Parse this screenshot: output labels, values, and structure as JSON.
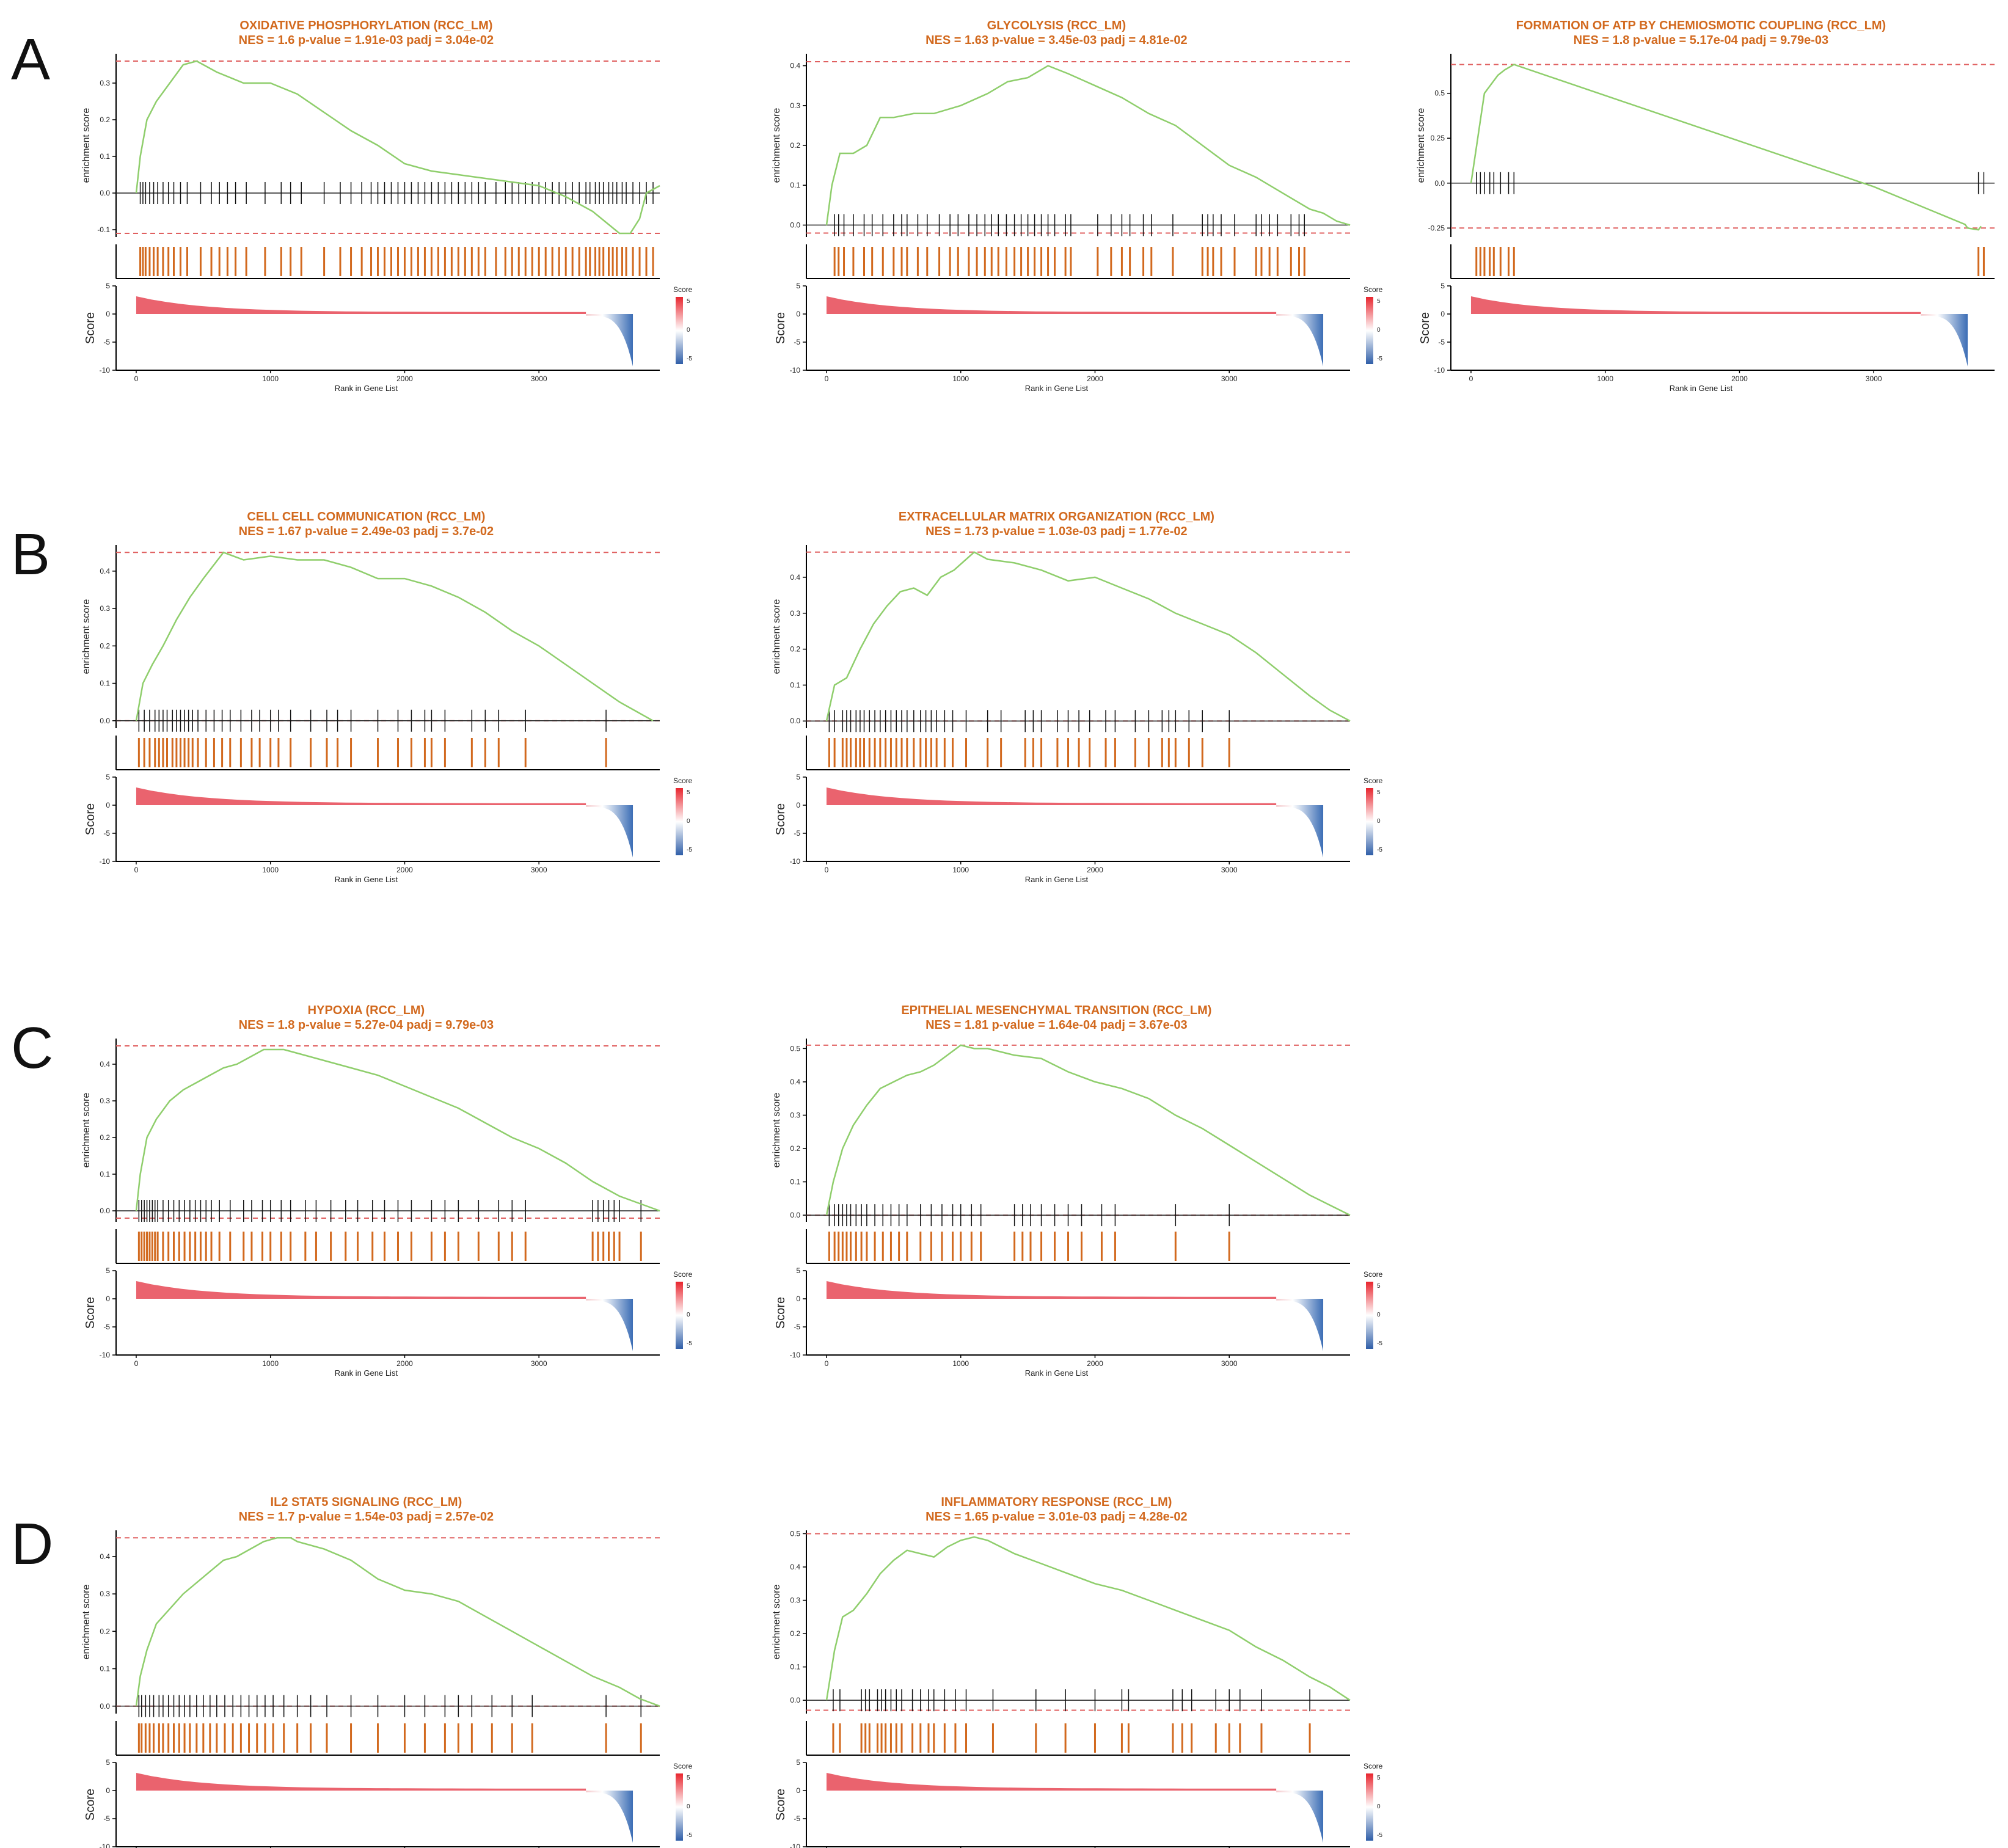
{
  "panel_letters": [
    "A",
    "B",
    "C",
    "D"
  ],
  "common": {
    "es_ylabel": "enrichment score",
    "score_ylabel": "Score",
    "xlabel": "Rank in Gene List",
    "legend_title": "Score",
    "legend_ticks": [
      "5",
      "0",
      "-5"
    ],
    "x_ticks": [
      0,
      1000,
      2000,
      3000
    ],
    "score_ticks": [
      5,
      0,
      -5,
      -10
    ],
    "colors": {
      "title": "#d2691e",
      "es_line": "#8fce6c",
      "hit_tick": "#111111",
      "rug": "#d2691e",
      "dashed": "#e06060",
      "pos": "#e8525e",
      "neg": "#3b6db5"
    }
  },
  "chart_data": [
    {
      "type": "line",
      "panel": "A",
      "title": "OXIDATIVE PHOSPHORYLATION (RCC_LM)",
      "subtitle": "NES = 1.6  p-value = 1.91e-03  padj = 3.04e-02",
      "x": [
        0,
        30,
        80,
        150,
        250,
        350,
        450,
        600,
        800,
        1000,
        1200,
        1400,
        1600,
        1800,
        2000,
        2200,
        2400,
        2600,
        2800,
        3000,
        3200,
        3400,
        3500,
        3600,
        3680,
        3750,
        3800,
        3900
      ],
      "y": [
        0.0,
        0.1,
        0.2,
        0.25,
        0.3,
        0.35,
        0.36,
        0.33,
        0.3,
        0.3,
        0.27,
        0.22,
        0.17,
        0.13,
        0.08,
        0.06,
        0.05,
        0.04,
        0.03,
        0.02,
        -0.01,
        -0.05,
        -0.08,
        -0.11,
        -0.11,
        -0.07,
        0.0,
        0.02
      ],
      "es_ticks": [
        0.3,
        0.2,
        0.1,
        0.0,
        -0.1
      ],
      "ylim": [
        -0.12,
        0.38
      ],
      "max_es": 0.36,
      "min_es": -0.11,
      "hits": [
        30,
        50,
        70,
        100,
        130,
        160,
        200,
        240,
        280,
        330,
        380,
        480,
        560,
        620,
        680,
        740,
        820,
        960,
        1080,
        1150,
        1230,
        1400,
        1520,
        1600,
        1680,
        1750,
        1800,
        1850,
        1900,
        1950,
        2000,
        2050,
        2100,
        2150,
        2200,
        2250,
        2300,
        2350,
        2400,
        2450,
        2500,
        2550,
        2600,
        2680,
        2750,
        2800,
        2850,
        2900,
        2950,
        3000,
        3050,
        3100,
        3150,
        3200,
        3250,
        3300,
        3350,
        3380,
        3420,
        3450,
        3480,
        3520,
        3550,
        3580,
        3620,
        3650,
        3700,
        3750,
        3800,
        3850
      ]
    },
    {
      "type": "line",
      "panel": "A",
      "title": "GLYCOLYSIS (RCC_LM)",
      "subtitle": "NES = 1.63  p-value = 3.45e-03  padj = 4.81e-02",
      "x": [
        0,
        40,
        100,
        200,
        300,
        400,
        500,
        650,
        800,
        1000,
        1200,
        1350,
        1500,
        1650,
        1800,
        2000,
        2200,
        2400,
        2600,
        2800,
        3000,
        3200,
        3400,
        3600,
        3700,
        3800,
        3900
      ],
      "y": [
        0.0,
        0.1,
        0.18,
        0.18,
        0.2,
        0.27,
        0.27,
        0.28,
        0.28,
        0.3,
        0.33,
        0.36,
        0.37,
        0.4,
        0.38,
        0.35,
        0.32,
        0.28,
        0.25,
        0.2,
        0.15,
        0.12,
        0.08,
        0.04,
        0.03,
        0.01,
        0.0
      ],
      "es_ticks": [
        0.4,
        0.3,
        0.2,
        0.1,
        0.0
      ],
      "ylim": [
        -0.03,
        0.43
      ],
      "max_es": 0.41,
      "min_es": -0.02,
      "hits": [
        60,
        90,
        130,
        200,
        280,
        340,
        420,
        500,
        560,
        600,
        680,
        750,
        840,
        920,
        980,
        1060,
        1120,
        1180,
        1230,
        1280,
        1340,
        1400,
        1450,
        1500,
        1550,
        1600,
        1650,
        1700,
        1780,
        1820,
        2020,
        2120,
        2200,
        2260,
        2360,
        2420,
        2580,
        2800,
        2840,
        2880,
        2940,
        3040,
        3200,
        3240,
        3300,
        3360,
        3460,
        3520,
        3560
      ]
    },
    {
      "type": "line",
      "panel": "A",
      "title": "FORMATION OF ATP BY CHEMIOSMOTIC COUPLING (RCC_LM)",
      "subtitle": "NES = 1.8  p-value = 5.17e-04  padj = 9.79e-03",
      "x": [
        0,
        40,
        70,
        100,
        150,
        200,
        250,
        320,
        3000,
        3680,
        3700,
        3780,
        3800
      ],
      "y": [
        0.0,
        0.2,
        0.35,
        0.5,
        0.55,
        0.6,
        0.63,
        0.66,
        -0.02,
        -0.23,
        -0.25,
        -0.26,
        -0.24
      ],
      "es_ticks": [
        0.5,
        0.25,
        0.0,
        -0.25
      ],
      "ylim": [
        -0.3,
        0.72
      ],
      "max_es": 0.66,
      "min_es": -0.25,
      "hits": [
        40,
        70,
        100,
        140,
        170,
        220,
        280,
        320,
        3780,
        3820
      ]
    },
    {
      "type": "line",
      "panel": "B",
      "title": "CELL CELL COMMUNICATION (RCC_LM)",
      "subtitle": "NES = 1.67  p-value = 2.49e-03  padj = 3.7e-02",
      "x": [
        0,
        50,
        120,
        200,
        300,
        400,
        500,
        650,
        800,
        1000,
        1200,
        1400,
        1600,
        1800,
        2000,
        2200,
        2400,
        2600,
        2800,
        3000,
        3200,
        3400,
        3600,
        3750,
        3850
      ],
      "y": [
        0.0,
        0.1,
        0.15,
        0.2,
        0.27,
        0.33,
        0.38,
        0.45,
        0.43,
        0.44,
        0.43,
        0.43,
        0.41,
        0.38,
        0.38,
        0.36,
        0.33,
        0.29,
        0.24,
        0.2,
        0.15,
        0.1,
        0.05,
        0.02,
        0.0
      ],
      "es_ticks": [
        0.4,
        0.3,
        0.2,
        0.1,
        0.0
      ],
      "ylim": [
        -0.02,
        0.47
      ],
      "max_es": 0.45,
      "min_es": 0.0,
      "hits": [
        20,
        60,
        100,
        140,
        170,
        200,
        230,
        270,
        300,
        330,
        360,
        390,
        420,
        460,
        520,
        580,
        640,
        700,
        780,
        860,
        920,
        1000,
        1060,
        1150,
        1300,
        1420,
        1500,
        1600,
        1800,
        1950,
        2050,
        2150,
        2200,
        2300,
        2500,
        2600,
        2700,
        2900,
        3500
      ]
    },
    {
      "type": "line",
      "panel": "B",
      "title": "EXTRACELLULAR MATRIX ORGANIZATION (RCC_LM)",
      "subtitle": "NES = 1.73  p-value = 1.03e-03  padj = 1.77e-02",
      "x": [
        0,
        60,
        150,
        250,
        350,
        450,
        550,
        650,
        750,
        850,
        950,
        1100,
        1200,
        1400,
        1600,
        1800,
        2000,
        2200,
        2400,
        2600,
        2800,
        3000,
        3200,
        3400,
        3600,
        3750,
        3900
      ],
      "y": [
        0.0,
        0.1,
        0.12,
        0.2,
        0.27,
        0.32,
        0.36,
        0.37,
        0.35,
        0.4,
        0.42,
        0.47,
        0.45,
        0.44,
        0.42,
        0.39,
        0.4,
        0.37,
        0.34,
        0.3,
        0.27,
        0.24,
        0.19,
        0.13,
        0.07,
        0.03,
        0.0
      ],
      "es_ticks": [
        0.4,
        0.3,
        0.2,
        0.1,
        0.0
      ],
      "ylim": [
        -0.02,
        0.49
      ],
      "max_es": 0.47,
      "min_es": 0.0,
      "hits": [
        20,
        60,
        120,
        150,
        180,
        220,
        250,
        280,
        320,
        360,
        400,
        440,
        480,
        520,
        560,
        600,
        650,
        700,
        740,
        780,
        820,
        880,
        940,
        1040,
        1200,
        1300,
        1480,
        1540,
        1600,
        1720,
        1800,
        1880,
        1960,
        2080,
        2150,
        2300,
        2400,
        2500,
        2550,
        2600,
        2700,
        2800,
        3000
      ]
    },
    {
      "type": "line",
      "panel": "C",
      "title": "HYPOXIA (RCC_LM)",
      "subtitle": "NES = 1.8  p-value = 5.27e-04  padj = 9.79e-03",
      "x": [
        0,
        30,
        80,
        150,
        250,
        350,
        450,
        550,
        650,
        750,
        850,
        950,
        1100,
        1200,
        1400,
        1600,
        1800,
        2000,
        2200,
        2400,
        2600,
        2800,
        3000,
        3200,
        3400,
        3600,
        3750,
        3900
      ],
      "y": [
        0.0,
        0.1,
        0.2,
        0.25,
        0.3,
        0.33,
        0.35,
        0.37,
        0.39,
        0.4,
        0.42,
        0.44,
        0.44,
        0.43,
        0.41,
        0.39,
        0.37,
        0.34,
        0.31,
        0.28,
        0.24,
        0.2,
        0.17,
        0.13,
        0.08,
        0.04,
        0.02,
        0.0
      ],
      "es_ticks": [
        0.4,
        0.3,
        0.2,
        0.1,
        0.0
      ],
      "ylim": [
        -0.03,
        0.47
      ],
      "max_es": 0.45,
      "min_es": -0.02,
      "hits": [
        20,
        40,
        60,
        80,
        100,
        120,
        140,
        160,
        200,
        240,
        280,
        320,
        360,
        400,
        440,
        480,
        520,
        560,
        620,
        700,
        800,
        860,
        940,
        1000,
        1080,
        1150,
        1260,
        1340,
        1450,
        1560,
        1650,
        1760,
        1850,
        1950,
        2050,
        2200,
        2300,
        2400,
        2550,
        2700,
        2800,
        2900,
        3400,
        3440,
        3480,
        3520,
        3560,
        3600,
        3760
      ]
    },
    {
      "type": "line",
      "panel": "C",
      "title": "EPITHELIAL MESENCHYMAL TRANSITION (RCC_LM)",
      "subtitle": "NES = 1.81  p-value = 1.64e-04  padj = 3.67e-03",
      "x": [
        0,
        50,
        120,
        200,
        300,
        400,
        500,
        600,
        700,
        800,
        900,
        1000,
        1100,
        1200,
        1400,
        1600,
        1800,
        2000,
        2200,
        2400,
        2600,
        2800,
        3000,
        3200,
        3400,
        3600,
        3750,
        3900
      ],
      "y": [
        0.0,
        0.1,
        0.2,
        0.27,
        0.33,
        0.38,
        0.4,
        0.42,
        0.43,
        0.45,
        0.48,
        0.51,
        0.5,
        0.5,
        0.48,
        0.47,
        0.43,
        0.4,
        0.38,
        0.35,
        0.3,
        0.26,
        0.21,
        0.16,
        0.11,
        0.06,
        0.03,
        0.0
      ],
      "es_ticks": [
        0.5,
        0.4,
        0.3,
        0.2,
        0.1,
        0.0
      ],
      "ylim": [
        -0.02,
        0.53
      ],
      "max_es": 0.51,
      "min_es": 0.0,
      "hits": [
        20,
        60,
        90,
        120,
        150,
        180,
        220,
        260,
        300,
        360,
        420,
        480,
        540,
        600,
        700,
        780,
        860,
        940,
        1000,
        1080,
        1150,
        1400,
        1460,
        1520,
        1600,
        1700,
        1800,
        1900,
        2050,
        2150,
        2600,
        3000
      ]
    },
    {
      "type": "line",
      "panel": "D",
      "title": "IL2 STAT5 SIGNALING (RCC_LM)",
      "subtitle": "NES = 1.7  p-value = 1.54e-03  padj = 2.57e-02",
      "x": [
        0,
        30,
        80,
        150,
        250,
        350,
        450,
        550,
        650,
        750,
        850,
        950,
        1050,
        1150,
        1200,
        1400,
        1600,
        1800,
        2000,
        2200,
        2400,
        2600,
        2800,
        3000,
        3200,
        3400,
        3600,
        3750,
        3900
      ],
      "y": [
        0.0,
        0.08,
        0.15,
        0.22,
        0.26,
        0.3,
        0.33,
        0.36,
        0.39,
        0.4,
        0.42,
        0.44,
        0.45,
        0.45,
        0.44,
        0.42,
        0.39,
        0.34,
        0.31,
        0.3,
        0.28,
        0.24,
        0.2,
        0.16,
        0.12,
        0.08,
        0.05,
        0.02,
        0.0
      ],
      "es_ticks": [
        0.4,
        0.3,
        0.2,
        0.1,
        0.0
      ],
      "ylim": [
        -0.02,
        0.47
      ],
      "max_es": 0.45,
      "min_es": 0.0,
      "hits": [
        20,
        40,
        70,
        100,
        130,
        170,
        200,
        240,
        280,
        320,
        360,
        400,
        450,
        500,
        550,
        600,
        660,
        720,
        780,
        840,
        900,
        960,
        1020,
        1100,
        1200,
        1300,
        1420,
        1600,
        1800,
        2000,
        2150,
        2300,
        2400,
        2500,
        2650,
        2800,
        2950,
        3500,
        3760
      ]
    },
    {
      "type": "line",
      "panel": "D",
      "title": "INFLAMMATORY RESPONSE (RCC_LM)",
      "subtitle": "NES = 1.65  p-value = 3.01e-03  padj = 4.28e-02",
      "x": [
        0,
        60,
        120,
        200,
        300,
        400,
        500,
        600,
        700,
        800,
        900,
        1000,
        1100,
        1200,
        1400,
        1600,
        1800,
        2000,
        2200,
        2400,
        2600,
        2800,
        3000,
        3200,
        3400,
        3600,
        3750,
        3900
      ],
      "y": [
        0.0,
        0.15,
        0.25,
        0.27,
        0.32,
        0.38,
        0.42,
        0.45,
        0.44,
        0.43,
        0.46,
        0.48,
        0.49,
        0.48,
        0.44,
        0.41,
        0.38,
        0.35,
        0.33,
        0.3,
        0.27,
        0.24,
        0.21,
        0.16,
        0.12,
        0.07,
        0.04,
        0.0
      ],
      "es_ticks": [
        0.5,
        0.4,
        0.3,
        0.2,
        0.1,
        0.0
      ],
      "ylim": [
        -0.04,
        0.51
      ],
      "max_es": 0.5,
      "min_es": -0.03,
      "hits": [
        50,
        100,
        260,
        290,
        320,
        380,
        410,
        440,
        480,
        520,
        560,
        640,
        700,
        760,
        800,
        880,
        960,
        1040,
        1240,
        1560,
        1780,
        2000,
        2200,
        2250,
        2580,
        2650,
        2720,
        2900,
        3000,
        3080,
        3240,
        3600
      ]
    }
  ]
}
